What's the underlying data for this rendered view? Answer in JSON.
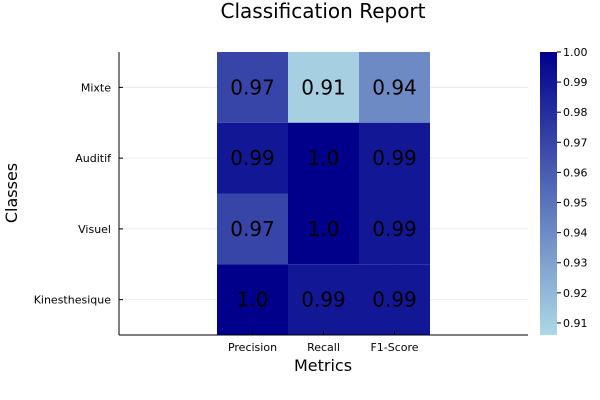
{
  "chart_data": {
    "type": "heatmap",
    "title": "Classification Report",
    "xlabel": "Metrics",
    "ylabel": "Classes",
    "x_categories": [
      "Precision",
      "Recall",
      "F1-Score"
    ],
    "y_categories": [
      "Mixte",
      "Auditif",
      "Visuel",
      "Kinesthesique"
    ],
    "values": [
      [
        0.97,
        0.91,
        0.94
      ],
      [
        0.99,
        1.0,
        0.99
      ],
      [
        0.97,
        1.0,
        0.99
      ],
      [
        1.0,
        0.99,
        0.99
      ]
    ],
    "cell_labels": [
      [
        "0.97",
        "0.91",
        "0.94"
      ],
      [
        "0.99",
        "1.0",
        "0.99"
      ],
      [
        "0.97",
        "1.0",
        "0.99"
      ],
      [
        "1.0",
        "0.99",
        "0.99"
      ]
    ],
    "colorbar": {
      "range": [
        0.906,
        1.0
      ],
      "ticks": [
        "0.91",
        "0.92",
        "0.93",
        "0.94",
        "0.95",
        "0.96",
        "0.97",
        "0.98",
        "0.99",
        "1.00"
      ],
      "color_low": "#add8e6",
      "color_high": "#00008b"
    },
    "grid": true
  }
}
